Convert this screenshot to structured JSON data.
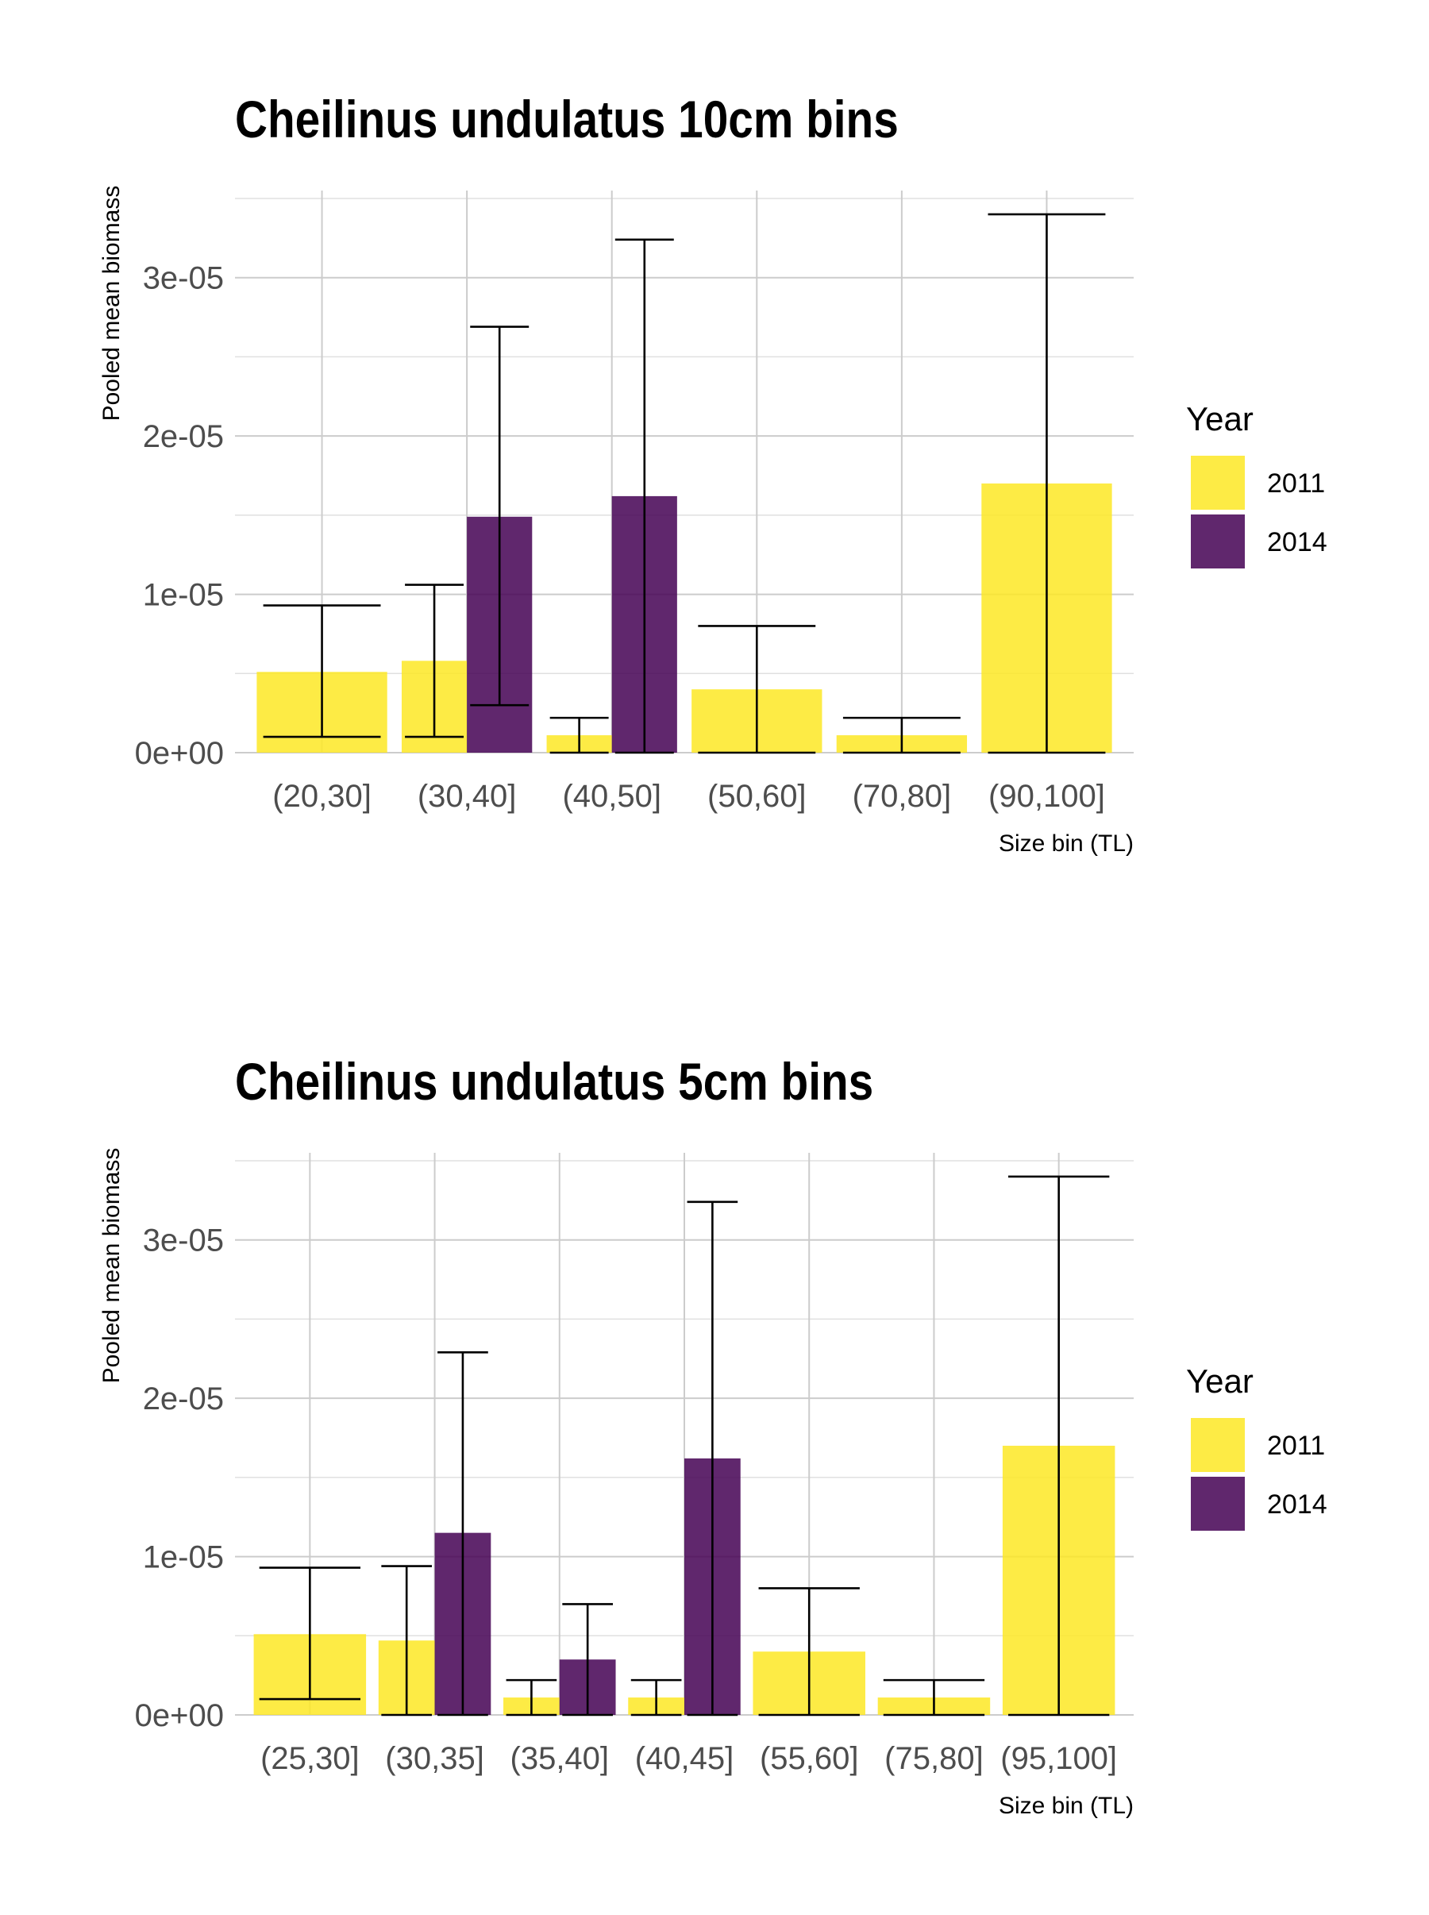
{
  "chart_data": [
    {
      "type": "bar",
      "title": "Cheilinus undulatus 10cm bins",
      "xlabel": "Size bin (TL)",
      "ylabel": "Pooled mean biomass",
      "ylim": [
        0,
        3.55e-05
      ],
      "yticks": [
        "0e+00",
        "1e-05",
        "2e-05",
        "3e-05"
      ],
      "ytick_values": [
        0,
        1e-05,
        2e-05,
        3e-05
      ],
      "grid": true,
      "legend": {
        "title": "Year",
        "position": "right",
        "entries": [
          "2011",
          "2014"
        ]
      },
      "colors": {
        "2011": "#FDE725",
        "2014": "#440154"
      },
      "categories": [
        "(20,30]",
        "(30,40]",
        "(40,50]",
        "(50,60]",
        "(70,80]",
        "(90,100]"
      ],
      "series": [
        {
          "name": "2011",
          "values": [
            5.1e-06,
            5.8e-06,
            1.1e-06,
            4e-06,
            1.1e-06,
            1.7e-05
          ],
          "error_low": [
            1e-06,
            1e-06,
            0,
            0,
            0,
            0
          ],
          "error_high": [
            9.3e-06,
            1.06e-05,
            2.2e-06,
            8e-06,
            2.2e-06,
            3.4e-05
          ]
        },
        {
          "name": "2014",
          "values": [
            null,
            1.49e-05,
            1.62e-05,
            null,
            null,
            null
          ],
          "error_low": [
            null,
            3e-06,
            0,
            null,
            null,
            null
          ],
          "error_high": [
            null,
            2.69e-05,
            3.24e-05,
            null,
            null,
            null
          ]
        }
      ]
    },
    {
      "type": "bar",
      "title": "Cheilinus undulatus 5cm bins",
      "xlabel": "Size bin (TL)",
      "ylabel": "Pooled mean biomass",
      "ylim": [
        0,
        3.55e-05
      ],
      "yticks": [
        "0e+00",
        "1e-05",
        "2e-05",
        "3e-05"
      ],
      "ytick_values": [
        0,
        1e-05,
        2e-05,
        3e-05
      ],
      "grid": true,
      "legend": {
        "title": "Year",
        "position": "right",
        "entries": [
          "2011",
          "2014"
        ]
      },
      "colors": {
        "2011": "#FDE725",
        "2014": "#440154"
      },
      "categories": [
        "(25,30]",
        "(30,35]",
        "(35,40]",
        "(40,45]",
        "(55,60]",
        "(75,80]",
        "(95,100]"
      ],
      "series": [
        {
          "name": "2011",
          "values": [
            5.1e-06,
            4.7e-06,
            1.1e-06,
            1.1e-06,
            4e-06,
            1.1e-06,
            1.7e-05
          ],
          "error_low": [
            1e-06,
            0,
            0,
            0,
            0,
            0,
            0
          ],
          "error_high": [
            9.3e-06,
            9.4e-06,
            2.2e-06,
            2.2e-06,
            8e-06,
            2.2e-06,
            3.4e-05
          ]
        },
        {
          "name": "2014",
          "values": [
            null,
            1.15e-05,
            3.5e-06,
            1.62e-05,
            null,
            null,
            null
          ],
          "error_low": [
            null,
            0,
            0,
            0,
            null,
            null,
            null
          ],
          "error_high": [
            null,
            2.29e-05,
            7e-06,
            3.24e-05,
            null,
            null,
            null
          ]
        }
      ]
    }
  ]
}
